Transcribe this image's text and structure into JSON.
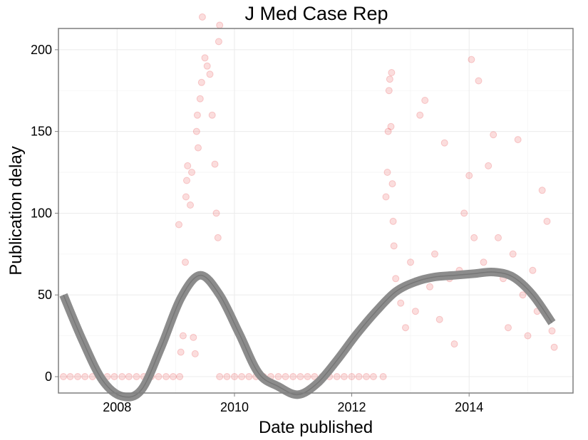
{
  "chart_data": {
    "type": "scatter",
    "title": "J Med Case Rep",
    "xlabel": "Date published",
    "ylabel": "Publication delay",
    "xlim": [
      "2007-01-01",
      "2015-10-10"
    ],
    "ylim": [
      -10,
      213
    ],
    "xticks": [
      {
        "date": "2008-01-01",
        "label": "2008"
      },
      {
        "date": "2010-01-01",
        "label": "2010"
      },
      {
        "date": "2012-01-01",
        "label": "2012"
      },
      {
        "date": "2014-01-01",
        "label": "2014"
      }
    ],
    "yticks": [
      0,
      50,
      100,
      150,
      200
    ],
    "grid": true,
    "legend": "none",
    "point_color": "#e31a1c",
    "point_opacity": 0.15,
    "smooth_color": "#8c8c8c",
    "series": [
      {
        "type": "points",
        "points": [
          [
            "2007-02-01",
            0
          ],
          [
            "2007-03-15",
            0
          ],
          [
            "2007-05-01",
            0
          ],
          [
            "2007-06-15",
            0
          ],
          [
            "2007-08-01",
            0
          ],
          [
            "2007-09-15",
            0
          ],
          [
            "2007-11-01",
            0
          ],
          [
            "2007-12-15",
            0
          ],
          [
            "2008-02-01",
            0
          ],
          [
            "2008-03-15",
            0
          ],
          [
            "2008-05-01",
            0
          ],
          [
            "2008-06-15",
            0
          ],
          [
            "2008-08-01",
            0
          ],
          [
            "2008-09-15",
            0
          ],
          [
            "2008-11-01",
            0
          ],
          [
            "2008-12-15",
            0
          ],
          [
            "2009-01-25",
            0
          ],
          [
            "2009-10-01",
            0
          ],
          [
            "2009-11-15",
            0
          ],
          [
            "2010-01-01",
            0
          ],
          [
            "2010-02-15",
            0
          ],
          [
            "2010-04-01",
            0
          ],
          [
            "2010-05-15",
            0
          ],
          [
            "2010-07-01",
            0
          ],
          [
            "2010-08-15",
            0
          ],
          [
            "2010-10-01",
            0
          ],
          [
            "2010-11-15",
            0
          ],
          [
            "2011-01-01",
            0
          ],
          [
            "2011-02-15",
            0
          ],
          [
            "2011-04-01",
            0
          ],
          [
            "2011-05-15",
            0
          ],
          [
            "2011-07-01",
            0
          ],
          [
            "2011-08-15",
            0
          ],
          [
            "2011-10-01",
            0
          ],
          [
            "2011-11-15",
            0
          ],
          [
            "2012-01-01",
            0
          ],
          [
            "2012-02-15",
            0
          ],
          [
            "2012-04-01",
            0
          ],
          [
            "2012-05-15",
            0
          ],
          [
            "2012-07-15",
            0
          ],
          [
            "2009-01-20",
            93
          ],
          [
            "2009-02-01",
            15
          ],
          [
            "2009-02-15",
            25
          ],
          [
            "2009-03-01",
            70
          ],
          [
            "2009-03-05",
            110
          ],
          [
            "2009-03-10",
            120
          ],
          [
            "2009-03-15",
            129
          ],
          [
            "2009-04-01",
            105
          ],
          [
            "2009-04-10",
            125
          ],
          [
            "2009-04-20",
            24
          ],
          [
            "2009-05-01",
            14
          ],
          [
            "2009-05-10",
            150
          ],
          [
            "2009-05-15",
            160
          ],
          [
            "2009-05-20",
            140
          ],
          [
            "2009-06-01",
            170
          ],
          [
            "2009-06-10",
            180
          ],
          [
            "2009-06-15",
            220
          ],
          [
            "2009-07-01",
            195
          ],
          [
            "2009-07-15",
            190
          ],
          [
            "2009-08-01",
            185
          ],
          [
            "2009-08-15",
            160
          ],
          [
            "2009-09-01",
            130
          ],
          [
            "2009-09-10",
            100
          ],
          [
            "2009-09-20",
            85
          ],
          [
            "2009-09-25",
            205
          ],
          [
            "2009-10-01",
            215
          ],
          [
            "2012-08-01",
            110
          ],
          [
            "2012-08-10",
            125
          ],
          [
            "2012-08-15",
            150
          ],
          [
            "2012-08-20",
            175
          ],
          [
            "2012-08-25",
            182
          ],
          [
            "2012-09-01",
            153
          ],
          [
            "2012-09-05",
            186
          ],
          [
            "2012-09-10",
            118
          ],
          [
            "2012-09-15",
            95
          ],
          [
            "2012-09-20",
            80
          ],
          [
            "2012-10-01",
            60
          ],
          [
            "2012-11-01",
            45
          ],
          [
            "2012-12-01",
            30
          ],
          [
            "2013-01-01",
            70
          ],
          [
            "2013-02-01",
            40
          ],
          [
            "2013-03-01",
            160
          ],
          [
            "2013-04-01",
            169
          ],
          [
            "2013-05-01",
            55
          ],
          [
            "2013-06-01",
            75
          ],
          [
            "2013-07-01",
            35
          ],
          [
            "2013-08-01",
            143
          ],
          [
            "2013-09-01",
            60
          ],
          [
            "2013-10-01",
            20
          ],
          [
            "2013-11-01",
            65
          ],
          [
            "2013-12-01",
            100
          ],
          [
            "2014-01-01",
            123
          ],
          [
            "2014-01-15",
            194
          ],
          [
            "2014-02-01",
            85
          ],
          [
            "2014-03-01",
            181
          ],
          [
            "2014-04-01",
            70
          ],
          [
            "2014-05-01",
            129
          ],
          [
            "2014-06-01",
            148
          ],
          [
            "2014-07-01",
            85
          ],
          [
            "2014-08-01",
            60
          ],
          [
            "2014-09-01",
            30
          ],
          [
            "2014-10-01",
            75
          ],
          [
            "2014-11-01",
            145
          ],
          [
            "2014-12-01",
            50
          ],
          [
            "2015-01-01",
            25
          ],
          [
            "2015-02-01",
            65
          ],
          [
            "2015-03-01",
            40
          ],
          [
            "2015-04-01",
            114
          ],
          [
            "2015-05-01",
            95
          ],
          [
            "2015-06-01",
            28
          ],
          [
            "2015-06-15",
            18
          ]
        ]
      },
      {
        "type": "smooth",
        "band_width": 12,
        "x": [
          "2007-02-01",
          "2007-06-01",
          "2007-10-01",
          "2008-02-01",
          "2008-06-01",
          "2008-10-01",
          "2009-02-01",
          "2009-06-01",
          "2009-10-01",
          "2010-02-01",
          "2010-06-01",
          "2010-10-01",
          "2011-02-01",
          "2011-06-01",
          "2011-10-01",
          "2012-02-01",
          "2012-06-01",
          "2012-10-01",
          "2013-02-01",
          "2013-06-01",
          "2013-10-01",
          "2014-02-01",
          "2014-06-01",
          "2014-10-01",
          "2015-02-01",
          "2015-06-01"
        ],
        "y": [
          50,
          22,
          -2,
          -12,
          -8,
          18,
          48,
          62,
          50,
          26,
          2,
          -6,
          -11,
          -4,
          10,
          26,
          40,
          52,
          58,
          61,
          62,
          63,
          64,
          61,
          50,
          33
        ]
      }
    ]
  }
}
